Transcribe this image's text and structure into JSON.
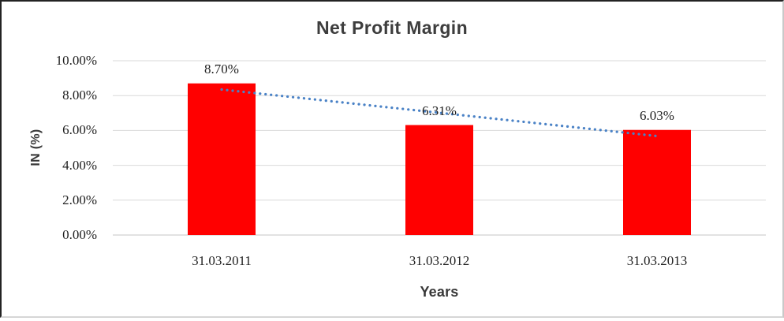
{
  "chart_data": {
    "type": "bar",
    "title": "Net Profit Margin",
    "xlabel": "Years",
    "ylabel": "IN (%)",
    "categories": [
      "31.03.2011",
      "31.03.2012",
      "31.03.2013"
    ],
    "values": [
      8.7,
      6.31,
      6.03
    ],
    "data_labels": [
      "8.70%",
      "6.31%",
      "6.03%"
    ],
    "y_ticks": [
      "10.00%",
      "8.00%",
      "6.00%",
      "4.00%",
      "2.00%",
      "0.00%"
    ],
    "y_tick_values": [
      10,
      8,
      6,
      4,
      2,
      0
    ],
    "ylim": [
      0,
      10
    ],
    "grid": true,
    "legend": "none",
    "bar_color": "#ff0000",
    "trendline": {
      "style": "dotted",
      "fit": "linear",
      "color": "#4a82c6"
    }
  },
  "colors": {
    "gridline": "#d9d9d9",
    "axis_line": "#c6c6c6",
    "title_text": "#3d3d3d",
    "tick_text": "#1f1f1f",
    "background": "#ffffff"
  }
}
